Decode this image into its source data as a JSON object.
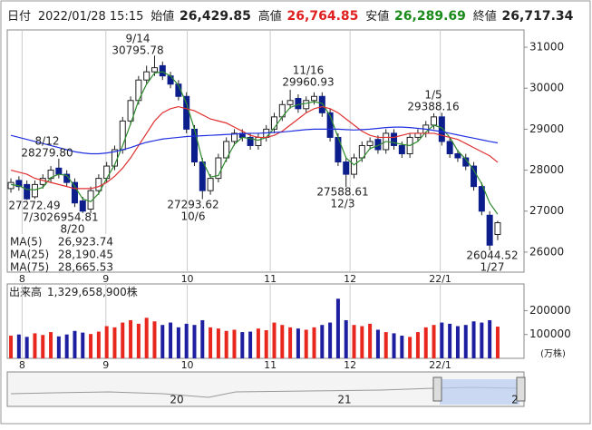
{
  "chart_data": {
    "type": "candlestick",
    "header": {
      "date_label": "日付",
      "datetime": "2022/01/28 15:15",
      "open_label": "始値",
      "open": "26,429.85",
      "high_label": "高値",
      "high": "26,764.85",
      "low_label": "安値",
      "low": "26,289.69",
      "close_label": "終値",
      "close": "26,717.34"
    },
    "xlim": [
      -0.46,
      64.3
    ],
    "xticks": [
      {
        "value": 1.4,
        "label": "8"
      },
      {
        "value": 11.9,
        "label": "9"
      },
      {
        "value": 22.1,
        "label": "10"
      },
      {
        "value": 32.5,
        "label": "11"
      },
      {
        "value": 42.5,
        "label": "12"
      },
      {
        "value": 53.8,
        "label": "22/1"
      }
    ],
    "ylim": [
      25511,
      31422
    ],
    "yticks": [
      26000,
      27000,
      28000,
      29000,
      30000,
      31000
    ],
    "up_color": "#ffffff",
    "down_color": "#0c1e8c",
    "edge_color": "#222222",
    "open": [
      27550,
      27750,
      27650,
      27350,
      27650,
      27800,
      28050,
      27900,
      27700,
      27250,
      27050,
      27500,
      27800,
      28100,
      28500,
      29200,
      29700,
      30200,
      30400,
      30550,
      30300,
      30100,
      29800,
      29000,
      28200,
      27500,
      27800,
      28300,
      28700,
      28900,
      28800,
      28600,
      28800,
      29000,
      29300,
      29600,
      29750,
      29500,
      29700,
      29800,
      29400,
      28800,
      28200,
      27900,
      28300,
      28600,
      28750,
      28500,
      28900,
      28600,
      28400,
      28800,
      28900,
      29100,
      29300,
      28700,
      28400,
      28300,
      28100,
      27600,
      26900,
      26429.85
    ],
    "high": [
      27800,
      27850,
      27750,
      27750,
      27900,
      28100,
      28279.8,
      28000,
      27800,
      27350,
      27600,
      27900,
      28200,
      28600,
      29300,
      29800,
      30300,
      30550,
      30795.78,
      30650,
      30400,
      30200,
      29900,
      29100,
      28300,
      27900,
      28400,
      28800,
      29000,
      29000,
      28900,
      28900,
      29100,
      29400,
      29700,
      29960.93,
      29850,
      29800,
      29900,
      29900,
      29500,
      28900,
      28300,
      28400,
      28700,
      28800,
      28850,
      29000,
      29000,
      28700,
      28900,
      29000,
      29200,
      29388.16,
      29400,
      28800,
      28500,
      28400,
      28200,
      27700,
      27000,
      26764.85
    ],
    "low": [
      27450,
      27500,
      27272.49,
      27300,
      27550,
      27700,
      27800,
      27600,
      27100,
      26954.81,
      26950,
      27400,
      27700,
      28000,
      28400,
      29100,
      29600,
      30100,
      30300,
      30200,
      30000,
      29700,
      28900,
      28100,
      27293.62,
      27400,
      27700,
      28200,
      28600,
      28700,
      28500,
      28500,
      28700,
      28900,
      29200,
      29500,
      29400,
      29400,
      29600,
      29300,
      28700,
      28100,
      27588.61,
      27800,
      28200,
      28500,
      28400,
      28400,
      28500,
      28300,
      28300,
      28700,
      28800,
      29000,
      28600,
      28300,
      28200,
      28000,
      27500,
      26900,
      26044.52,
      26289.69
    ],
    "close": [
      27700,
      27600,
      27300,
      27650,
      27800,
      28000,
      27900,
      27700,
      27200,
      27000,
      27500,
      27800,
      28100,
      28500,
      29200,
      29700,
      30200,
      30400,
      30500,
      30300,
      30100,
      29800,
      29000,
      28200,
      27500,
      27800,
      28300,
      28700,
      28900,
      28800,
      28600,
      28800,
      29000,
      29300,
      29600,
      29700,
      29500,
      29700,
      29800,
      29400,
      28800,
      28200,
      27900,
      28300,
      28600,
      28700,
      28500,
      28900,
      28600,
      28400,
      28800,
      28900,
      29100,
      29300,
      28700,
      28400,
      28300,
      28100,
      27600,
      27000,
      26170,
      26717.34
    ],
    "series": [
      {
        "name": "MA(5)",
        "latest": "26,923.74",
        "color": "#2e8b2e",
        "values": [
          27650,
          27620,
          27530,
          27520,
          27580,
          27820,
          27900,
          27870,
          27600,
          27300,
          27230,
          27430,
          27800,
          28130,
          28600,
          29130,
          29700,
          30100,
          30370,
          30400,
          30300,
          30070,
          29630,
          29000,
          28230,
          27830,
          27870,
          28270,
          28630,
          28800,
          28770,
          28730,
          28800,
          29030,
          29300,
          29530,
          29600,
          29630,
          29670,
          29630,
          29330,
          28800,
          28300,
          28130,
          28270,
          28530,
          28600,
          28700,
          28670,
          28630,
          28600,
          28700,
          28930,
          29100,
          29030,
          28800,
          28470,
          28270,
          28000,
          27670,
          27200,
          26923.74
        ]
      },
      {
        "name": "MA(25)",
        "latest": "28,190.45",
        "color": "#e03030",
        "values": [
          28000,
          27950,
          27900,
          27800,
          27750,
          27700,
          27650,
          27600,
          27550,
          27550,
          27550,
          27600,
          27700,
          27850,
          28050,
          28300,
          28600,
          28900,
          29200,
          29400,
          29500,
          29550,
          29500,
          29450,
          29350,
          29250,
          29200,
          29150,
          29050,
          28950,
          28850,
          28800,
          28800,
          28850,
          28950,
          29100,
          29250,
          29400,
          29500,
          29550,
          29500,
          29400,
          29250,
          29100,
          28950,
          28850,
          28800,
          28800,
          28800,
          28850,
          28900,
          28900,
          28900,
          28900,
          28850,
          28800,
          28750,
          28650,
          28550,
          28450,
          28350,
          28190.45
        ]
      },
      {
        "name": "MA(75)",
        "latest": "28,665.53",
        "color": "#2030e0",
        "values": [
          28850,
          28800,
          28750,
          28700,
          28650,
          28600,
          28550,
          28500,
          28450,
          28420,
          28400,
          28400,
          28420,
          28450,
          28500,
          28550,
          28620,
          28680,
          28720,
          28760,
          28780,
          28800,
          28820,
          28830,
          28840,
          28850,
          28860,
          28870,
          28880,
          28890,
          28900,
          28900,
          28910,
          28920,
          28930,
          28950,
          28970,
          28990,
          29000,
          29000,
          29000,
          29000,
          28990,
          28980,
          28990,
          29000,
          29020,
          29040,
          29050,
          29050,
          29040,
          29020,
          29000,
          28970,
          28940,
          28900,
          28860,
          28820,
          28780,
          28740,
          28700,
          28665.53
        ]
      }
    ],
    "annotations": [
      {
        "date": "8/12",
        "value": "28279.80"
      },
      {
        "date": "9/14",
        "value": "30795.78"
      },
      {
        "date": "11/16",
        "value": "29960.93"
      },
      {
        "date": "1/5",
        "value": "29388.16"
      },
      {
        "date": "7/30",
        "value": "27272.49"
      },
      {
        "date": "8/20",
        "value": "26954.81"
      },
      {
        "date": "10/6",
        "value": "27293.62"
      },
      {
        "date": "12/3",
        "value": "27588.61"
      },
      {
        "date": "1/27",
        "value": "26044.52"
      }
    ],
    "volume": {
      "label": "出来高",
      "total": "1,329,658,900株",
      "unit": "(万株)",
      "up_color": "#e8281e",
      "down_color": "#1e1ea0",
      "ylim": [
        0,
        312000
      ],
      "yticks": [
        100000,
        200000
      ],
      "values": [
        95000,
        100000,
        90000,
        105000,
        98000,
        110000,
        92000,
        100000,
        115000,
        108000,
        102000,
        112000,
        135000,
        130000,
        150000,
        160000,
        145000,
        170000,
        155000,
        140000,
        150000,
        130000,
        145000,
        140000,
        160000,
        130000,
        125000,
        115000,
        120000,
        110000,
        112000,
        125000,
        118000,
        150000,
        140000,
        130000,
        125000,
        120000,
        130000,
        140000,
        150000,
        250000,
        160000,
        140000,
        135000,
        145000,
        120000,
        110000,
        105000,
        95000,
        90000,
        110000,
        130000,
        140000,
        150000,
        145000,
        135000,
        140000,
        155000,
        150000,
        160000,
        132966
      ]
    },
    "navigator": {
      "labels": [
        "20",
        "21",
        "2"
      ]
    }
  }
}
